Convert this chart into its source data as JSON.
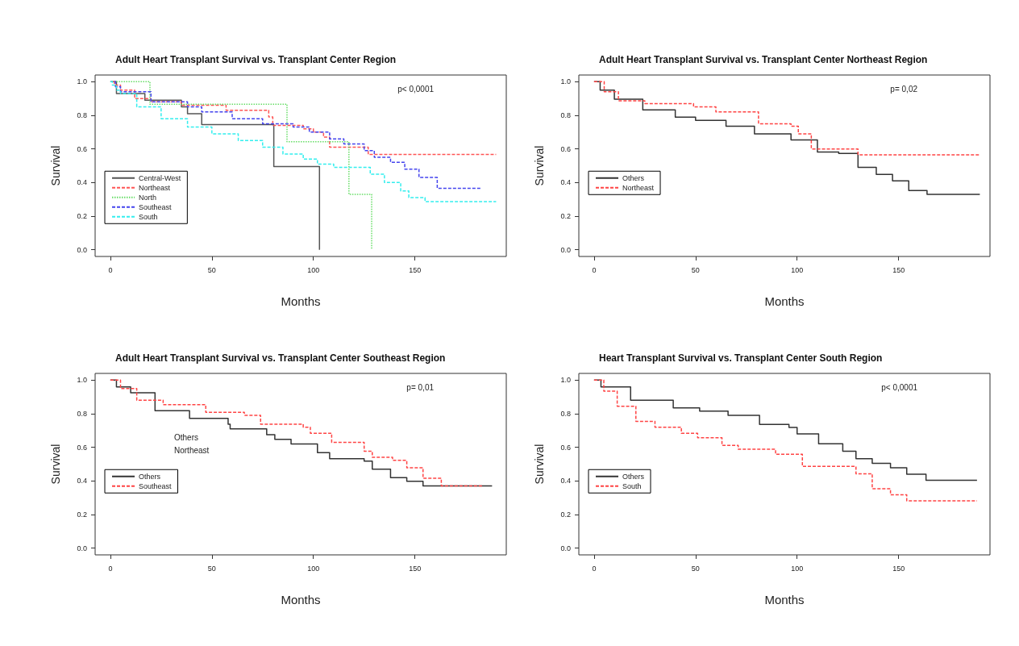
{
  "chart_data": [
    {
      "type": "step",
      "title": "Adult Heart Transplant Survival vs. Transplant Center Region",
      "xlabel": "Months",
      "ylabel": "Survival",
      "xlim": [
        -7.5,
        195
      ],
      "ylim": [
        -0.04,
        1.04
      ],
      "xticks": [
        0,
        50,
        100,
        150
      ],
      "yticks": [
        {
          "value": 0,
          "label": "0.0"
        },
        {
          "value": 0.2,
          "label": "0.2"
        },
        {
          "value": 0.4,
          "label": "0.4"
        },
        {
          "value": 0.6,
          "label": "0.6"
        },
        {
          "value": 0.8,
          "label": "0.8"
        },
        {
          "value": 1,
          "label": "1.0"
        }
      ],
      "grid": false,
      "legend": "bottom left",
      "marker": "none",
      "annotations": [
        "p< 0,0001"
      ],
      "series": [
        {
          "name": "Central-West",
          "color": "#555555",
          "line_style": "solid",
          "x": [
            0,
            3,
            17,
            35,
            38,
            45,
            80.5,
            103,
            103
          ],
          "values": [
            1,
            0.93,
            0.89,
            0.85,
            0.81,
            0.745,
            0.495,
            0.495,
            0
          ]
        },
        {
          "name": "Northeast",
          "color": "#ff5555",
          "line_style": "dashed",
          "x": [
            1.5,
            2,
            5,
            12,
            20,
            35,
            57,
            78,
            80,
            95,
            100,
            105,
            108,
            127,
            190
          ],
          "values": [
            1,
            0.98,
            0.95,
            0.9,
            0.88,
            0.86,
            0.83,
            0.79,
            0.74,
            0.72,
            0.7,
            0.67,
            0.61,
            0.567,
            0.567
          ]
        },
        {
          "name": "North",
          "color": "#66dd66",
          "line_style": "dotted",
          "x": [
            3,
            19.5,
            87,
            117.5,
            128.7,
            128.7
          ],
          "values": [
            1,
            0.866,
            0.643,
            0.33,
            0,
            0
          ]
        },
        {
          "name": "Southeast",
          "color": "#4444ee",
          "line_style": "dashed",
          "x": [
            2,
            2.5,
            5,
            20,
            38,
            45,
            60,
            75,
            90,
            98,
            108,
            115,
            125,
            130,
            138,
            145,
            152,
            161,
            182.6
          ],
          "values": [
            1,
            0.97,
            0.94,
            0.88,
            0.85,
            0.82,
            0.78,
            0.75,
            0.73,
            0.7,
            0.66,
            0.63,
            0.59,
            0.55,
            0.52,
            0.48,
            0.43,
            0.366,
            0.366
          ]
        },
        {
          "name": "South",
          "color": "#33eeee",
          "line_style": "dashed",
          "x": [
            0,
            1,
            3,
            5,
            13,
            25,
            38,
            50,
            63,
            75,
            85,
            95,
            102,
            110,
            124,
            128,
            135,
            143,
            147,
            155,
            190
          ],
          "values": [
            1,
            0.98,
            0.95,
            0.93,
            0.85,
            0.78,
            0.73,
            0.69,
            0.65,
            0.61,
            0.57,
            0.54,
            0.51,
            0.49,
            0.49,
            0.45,
            0.4,
            0.35,
            0.31,
            0.286,
            0.286
          ]
        }
      ]
    },
    {
      "type": "step",
      "title": "Adult Heart Transplant Survival vs. Transplant Center Northeast Region",
      "xlabel": "Months",
      "ylabel": "Survival",
      "xlim": [
        -7.5,
        195
      ],
      "ylim": [
        -0.04,
        1.04
      ],
      "xticks": [
        0,
        50,
        100,
        150
      ],
      "yticks": [
        {
          "value": 0,
          "label": "0.0"
        },
        {
          "value": 0.2,
          "label": "0.2"
        },
        {
          "value": 0.4,
          "label": "0.4"
        },
        {
          "value": 0.6,
          "label": "0.6"
        },
        {
          "value": 0.8,
          "label": "0.8"
        },
        {
          "value": 1,
          "label": "1.0"
        }
      ],
      "grid": false,
      "legend": "bottom left",
      "marker": "none",
      "annotations": [
        "p= 0,02"
      ],
      "series": [
        {
          "name": "Others",
          "color": "#333333",
          "line_style": "solid",
          "x": [
            0,
            3,
            10,
            24,
            40,
            50,
            65,
            79,
            97,
            110,
            120.5,
            130,
            139,
            147,
            155,
            164,
            190
          ],
          "values": [
            1,
            0.95,
            0.896,
            0.833,
            0.789,
            0.77,
            0.735,
            0.69,
            0.654,
            0.582,
            0.573,
            0.49,
            0.448,
            0.41,
            0.353,
            0.33,
            0.33
          ]
        },
        {
          "name": "Northeast",
          "color": "#ff4444",
          "line_style": "dashed",
          "x": [
            0,
            5,
            12,
            25,
            49,
            60,
            77,
            81,
            97,
            100.6,
            107,
            127,
            130,
            190
          ],
          "values": [
            1,
            0.94,
            0.887,
            0.87,
            0.85,
            0.82,
            0.82,
            0.75,
            0.735,
            0.69,
            0.6,
            0.6,
            0.565,
            0.565
          ]
        }
      ]
    },
    {
      "type": "step",
      "title": "Adult Heart Transplant Survival vs. Transplant Center Southeast Region",
      "xlabel": "Months",
      "ylabel": "Survival",
      "xlim": [
        -7.5,
        195
      ],
      "ylim": [
        -0.04,
        1.04
      ],
      "xticks": [
        0,
        50,
        100,
        150
      ],
      "yticks": [
        {
          "value": 0,
          "label": "0.0"
        },
        {
          "value": 0.2,
          "label": "0.2"
        },
        {
          "value": 0.4,
          "label": "0.4"
        },
        {
          "value": 0.6,
          "label": "0.6"
        },
        {
          "value": 0.8,
          "label": "0.8"
        },
        {
          "value": 1,
          "label": "1.0"
        }
      ],
      "grid": false,
      "legend": "bottom left",
      "marker": "none",
      "annotations": [
        "p= 0,01",
        "Others",
        "Northeast"
      ],
      "series": [
        {
          "name": "Others",
          "color": "#333333",
          "line_style": "solid",
          "x": [
            0,
            3,
            10,
            22,
            39,
            58,
            59,
            77,
            81,
            89,
            102,
            108,
            125,
            129,
            138,
            146,
            154,
            188
          ],
          "values": [
            1,
            0.96,
            0.925,
            0.818,
            0.773,
            0.738,
            0.71,
            0.675,
            0.648,
            0.62,
            0.568,
            0.532,
            0.518,
            0.47,
            0.42,
            0.398,
            0.371,
            0.371
          ]
        },
        {
          "name": "Southeast",
          "color": "#ff4444",
          "line_style": "dashed",
          "x": [
            0,
            5,
            13,
            26,
            47,
            66,
            74,
            95,
            98.5,
            109,
            125,
            129,
            139,
            146,
            154,
            163,
            183.5
          ],
          "values": [
            1,
            0.95,
            0.88,
            0.854,
            0.809,
            0.791,
            0.738,
            0.72,
            0.684,
            0.63,
            0.577,
            0.541,
            0.523,
            0.479,
            0.416,
            0.371,
            0.371
          ]
        }
      ]
    },
    {
      "type": "step",
      "title": "Heart Transplant Survival vs. Transplant Center South Region",
      "xlabel": "Months",
      "ylabel": "Survival",
      "xlim": [
        -7.5,
        195
      ],
      "ylim": [
        -0.04,
        1.04
      ],
      "xticks": [
        0,
        50,
        100,
        150
      ],
      "yticks": [
        {
          "value": 0,
          "label": "0.0"
        },
        {
          "value": 0.2,
          "label": "0.2"
        },
        {
          "value": 0.4,
          "label": "0.4"
        },
        {
          "value": 0.6,
          "label": "0.6"
        },
        {
          "value": 0.8,
          "label": "0.8"
        },
        {
          "value": 1,
          "label": "1.0"
        }
      ],
      "grid": false,
      "legend": "bottom left",
      "marker": "none",
      "annotations": [
        "p< 0,0001"
      ],
      "series": [
        {
          "name": "Others",
          "color": "#333333",
          "line_style": "solid",
          "x": [
            0,
            3.4,
            18,
            39,
            52,
            66,
            81.5,
            96,
            100,
            110.6,
            122.5,
            129,
            137,
            146,
            154,
            163.5,
            188.6
          ],
          "values": [
            1,
            0.96,
            0.88,
            0.835,
            0.816,
            0.79,
            0.736,
            0.718,
            0.68,
            0.621,
            0.577,
            0.532,
            0.505,
            0.479,
            0.44,
            0.404,
            0.404
          ]
        },
        {
          "name": "South",
          "color": "#ff4444",
          "line_style": "dashed",
          "x": [
            0,
            4.8,
            11.4,
            20.6,
            30,
            43,
            51,
            63,
            71,
            89.4,
            102.6,
            125,
            129,
            137,
            146,
            154,
            188.6
          ],
          "values": [
            1,
            0.934,
            0.845,
            0.755,
            0.72,
            0.684,
            0.657,
            0.612,
            0.589,
            0.559,
            0.487,
            0.487,
            0.443,
            0.354,
            0.318,
            0.282,
            0.282
          ]
        }
      ]
    }
  ]
}
